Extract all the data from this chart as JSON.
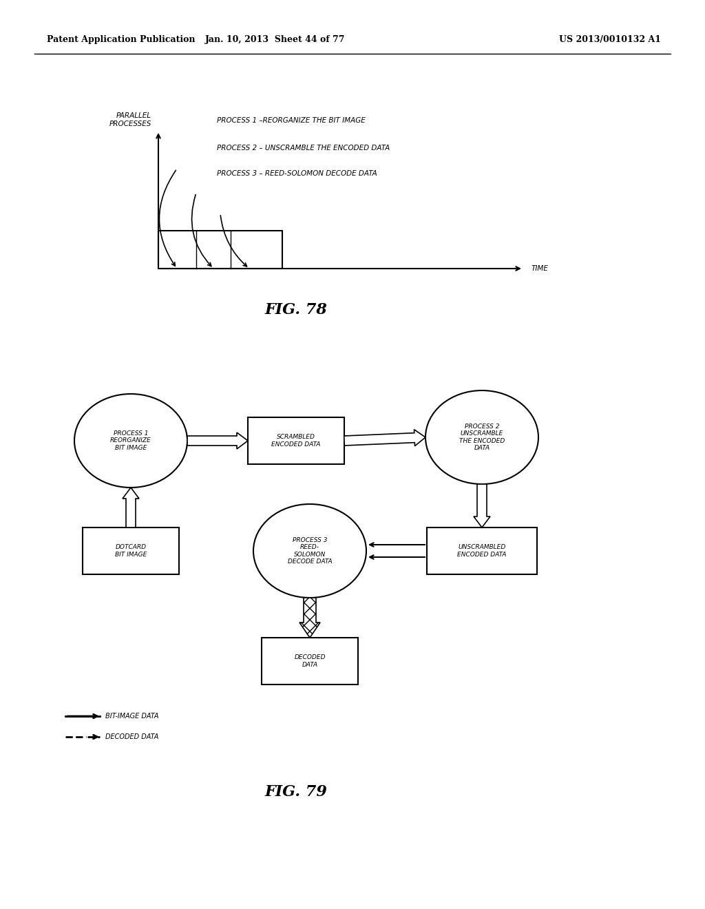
{
  "header_left": "Patent Application Publication",
  "header_mid": "Jan. 10, 2013  Sheet 44 of 77",
  "header_right": "US 2013/0010132 A1",
  "fig78_label": "FIG. 78",
  "fig79_label": "FIG. 79",
  "fig78": {
    "y_label": "PARALLEL\nPROCESSES",
    "x_label": "TIME",
    "process1": "PROCESS 1 –REORGANIZE THE BIT IMAGE",
    "process2": "PROCESS 2 – UNSCRAMBLE THE ENCODED DATA",
    "process3": "PROCESS 3 – REED-SOLOMON DECODE DATA"
  },
  "fig79": {
    "legend_solid": "BIT-IMAGE DATA",
    "legend_dashed": "DECODED DATA"
  },
  "bg_color": "#ffffff",
  "line_color": "#000000"
}
